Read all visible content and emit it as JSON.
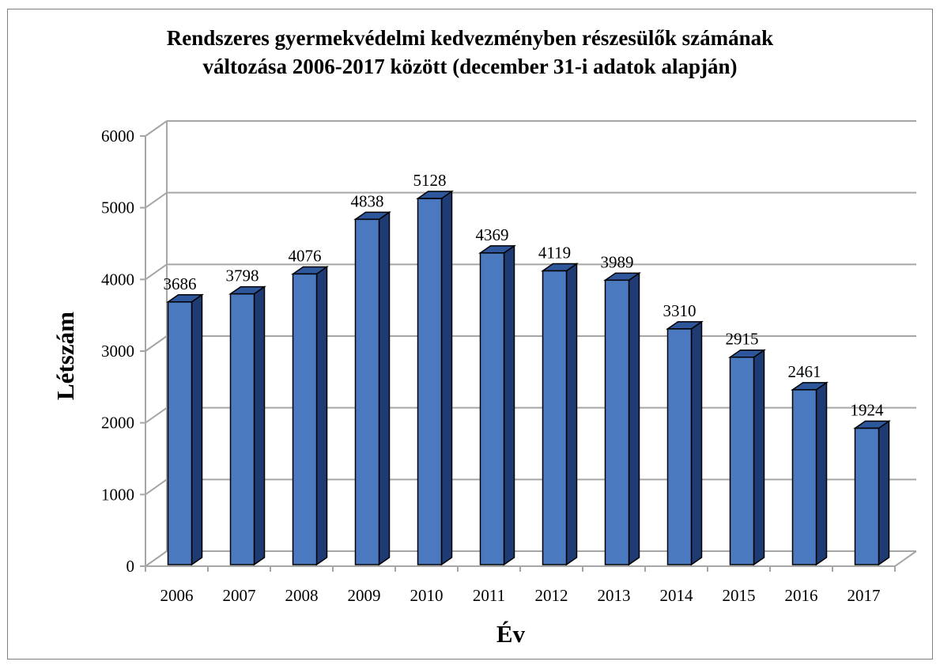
{
  "chart_data": {
    "type": "bar",
    "title_line1": "Rendszeres gyermekvédelmi kedvezményben részesülők számának",
    "title_line2": "változása 2006-2017 között (december 31-i adatok alapján)",
    "xlabel": "Év",
    "ylabel": "Létszám",
    "categories": [
      "2006",
      "2007",
      "2008",
      "2009",
      "2010",
      "2011",
      "2012",
      "2013",
      "2014",
      "2015",
      "2016",
      "2017"
    ],
    "values": [
      3686,
      3798,
      4076,
      4838,
      5128,
      4369,
      4119,
      3989,
      3310,
      2915,
      2461,
      1924
    ],
    "ylim": [
      0,
      6000
    ],
    "yticks": [
      "0",
      "1000",
      "2000",
      "3000",
      "4000",
      "5000",
      "6000"
    ],
    "grid": true,
    "legend": "none",
    "colors": {
      "bar_front": "#4a79c0",
      "bar_side": "#1f3b73",
      "bar_top": "#2e569a",
      "grid": "#a6a6a6",
      "outline": "#000000"
    }
  }
}
